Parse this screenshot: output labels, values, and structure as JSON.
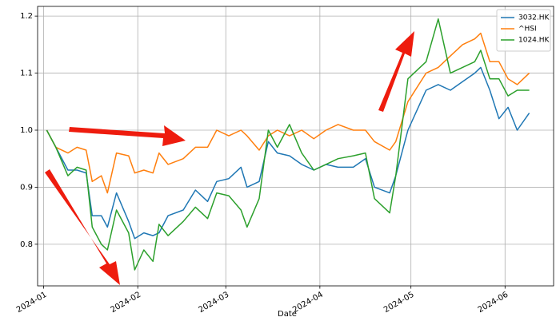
{
  "chart_data": {
    "type": "line",
    "xlabel": "Date",
    "x": [
      1,
      4,
      8,
      11,
      14,
      16,
      19,
      21,
      24,
      28,
      30,
      33,
      36,
      38,
      41,
      46,
      50,
      54,
      57,
      61,
      65,
      67,
      71,
      74,
      77,
      81,
      85,
      89,
      93,
      97,
      102,
      106,
      109,
      114,
      116,
      120,
      126,
      130,
      134,
      138,
      142,
      144,
      147,
      150,
      153,
      156,
      160
    ],
    "series": [
      {
        "name": "3032.HK",
        "color": "#1f77b4",
        "values": [
          1.0,
          0.97,
          0.93,
          0.93,
          0.925,
          0.85,
          0.85,
          0.83,
          0.89,
          0.84,
          0.81,
          0.82,
          0.815,
          0.82,
          0.85,
          0.86,
          0.895,
          0.875,
          0.91,
          0.915,
          0.935,
          0.9,
          0.91,
          0.98,
          0.96,
          0.955,
          0.94,
          0.93,
          0.94,
          0.935,
          0.935,
          0.95,
          0.9,
          0.89,
          0.92,
          1.0,
          1.07,
          1.08,
          1.07,
          1.085,
          1.1,
          1.11,
          1.07,
          1.02,
          1.04,
          1.0,
          1.03
        ]
      },
      {
        "name": "^HSI",
        "color": "#ff7f0e",
        "values": [
          1.0,
          0.97,
          0.96,
          0.97,
          0.965,
          0.91,
          0.92,
          0.89,
          0.96,
          0.955,
          0.925,
          0.93,
          0.925,
          0.96,
          0.94,
          0.95,
          0.97,
          0.97,
          1.0,
          0.99,
          1.0,
          0.99,
          0.965,
          0.99,
          1.0,
          0.99,
          1.0,
          0.985,
          1.0,
          1.01,
          1.0,
          1.0,
          0.98,
          0.965,
          0.98,
          1.05,
          1.1,
          1.11,
          1.13,
          1.15,
          1.16,
          1.17,
          1.12,
          1.12,
          1.09,
          1.08,
          1.1
        ]
      },
      {
        "name": "1024.HK",
        "color": "#2ca02c",
        "values": [
          1.0,
          0.97,
          0.92,
          0.935,
          0.93,
          0.83,
          0.8,
          0.79,
          0.86,
          0.82,
          0.755,
          0.79,
          0.77,
          0.835,
          0.815,
          0.84,
          0.865,
          0.845,
          0.89,
          0.885,
          0.86,
          0.83,
          0.88,
          1.0,
          0.97,
          1.01,
          0.96,
          0.93,
          0.94,
          0.95,
          0.955,
          0.96,
          0.88,
          0.855,
          0.92,
          1.09,
          1.12,
          1.195,
          1.1,
          1.11,
          1.12,
          1.14,
          1.09,
          1.09,
          1.06,
          1.07,
          1.07
        ]
      }
    ],
    "xlim": [
      -2,
      168
    ],
    "xticks": [
      {
        "value": 0,
        "label": "2024-01"
      },
      {
        "value": 31,
        "label": "2024-02"
      },
      {
        "value": 60,
        "label": "2024-03"
      },
      {
        "value": 91,
        "label": "2024-04"
      },
      {
        "value": 121,
        "label": "2024-05"
      },
      {
        "value": 152,
        "label": "2024-06"
      }
    ],
    "ylim": [
      0.727,
      1.217
    ],
    "yticks": [
      0.8,
      0.9,
      {
        "value": 1,
        "label": "1.0"
      },
      1.1,
      1.2
    ],
    "grid": true,
    "legend": "upper right"
  }
}
